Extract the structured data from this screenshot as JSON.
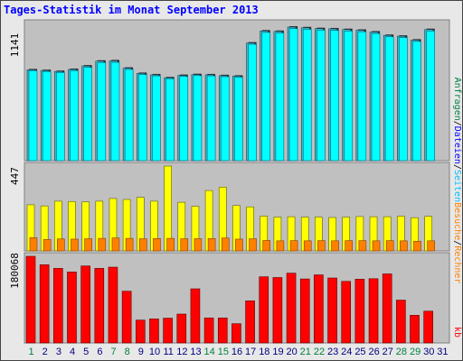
{
  "title": "Tages-Statistik im Monat September 2013",
  "colors": {
    "background": "#e8e8e8",
    "panel": "#c0c0c0",
    "anfragen": "#008040",
    "dateien": "#0000ff",
    "seiten": "#00c0ff",
    "besuche": "#ff8000",
    "rechner": "#ff8000",
    "kb": "#ff0000",
    "bar_requests": "#48bac0",
    "bar_files": "#00ffff",
    "bar_pages": "#00e0ff",
    "bar_visits": "#ffff00",
    "bar_hosts": "#ff8000",
    "bar_kb": "#ff0000",
    "weekend_label": "#008040",
    "weekday_label": "#000080"
  },
  "right_legend": {
    "anfragen": "Anfragen",
    "sep1": "/",
    "dateien": "Dateien",
    "sep2": "/",
    "seiten": "Seiten",
    "besuche": "Besuche",
    "sep3": "/",
    "rechner": "Rechner",
    "kb": "kb"
  },
  "chart_data": [
    {
      "type": "bar",
      "panel": "hits",
      "ymax_label": "1141",
      "ymax": 1141,
      "categories": [
        "1",
        "2",
        "3",
        "4",
        "5",
        "6",
        "7",
        "8",
        "9",
        "10",
        "11",
        "12",
        "13",
        "14",
        "15",
        "16",
        "17",
        "18",
        "19",
        "20",
        "21",
        "22",
        "23",
        "24",
        "25",
        "26",
        "27",
        "28",
        "29",
        "30"
      ],
      "series": [
        {
          "name": "Anfragen",
          "values": [
            776,
            770,
            762,
            779,
            809,
            850,
            853,
            790,
            745,
            733,
            708,
            728,
            735,
            733,
            726,
            722,
            1005,
            1108,
            1104,
            1141,
            1135,
            1128,
            1126,
            1120,
            1114,
            1099,
            1070,
            1063,
            1030,
            1120
          ]
        },
        {
          "name": "Dateien",
          "values": [
            769,
            761,
            753,
            769,
            797,
            838,
            840,
            779,
            735,
            724,
            700,
            719,
            726,
            724,
            717,
            713,
            994,
            1095,
            1091,
            1128,
            1122,
            1115,
            1113,
            1107,
            1101,
            1086,
            1058,
            1051,
            1018,
            1108
          ]
        }
      ]
    },
    {
      "type": "bar",
      "panel": "visits",
      "ymax_label": "447",
      "ymax": 447,
      "categories": [
        "1",
        "2",
        "3",
        "4",
        "5",
        "6",
        "7",
        "8",
        "9",
        "10",
        "11",
        "12",
        "13",
        "14",
        "15",
        "16",
        "17",
        "18",
        "19",
        "20",
        "21",
        "22",
        "23",
        "24",
        "25",
        "26",
        "27",
        "28",
        "29",
        "30"
      ],
      "series": [
        {
          "name": "Besuche",
          "values": [
            243,
            237,
            262,
            260,
            258,
            262,
            276,
            271,
            282,
            262,
            447,
            256,
            235,
            318,
            336,
            239,
            232,
            183,
            178,
            180,
            178,
            178,
            176,
            178,
            181,
            180,
            180,
            183,
            175,
            182
          ]
        },
        {
          "name": "Rechner",
          "values": [
            70,
            60,
            63,
            62,
            64,
            66,
            68,
            66,
            64,
            65,
            66,
            64,
            64,
            65,
            68,
            62,
            64,
            55,
            53,
            54,
            53,
            54,
            53,
            54,
            54,
            53,
            54,
            53,
            51,
            53
          ]
        }
      ]
    },
    {
      "type": "bar",
      "panel": "kb",
      "ymax_label": "180068",
      "ymax": 180068,
      "categories": [
        "1",
        "2",
        "3",
        "4",
        "5",
        "6",
        "7",
        "8",
        "9",
        "10",
        "11",
        "12",
        "13",
        "14",
        "15",
        "16",
        "17",
        "18",
        "19",
        "20",
        "21",
        "22",
        "23",
        "24",
        "25",
        "26",
        "27",
        "28",
        "29",
        "30"
      ],
      "series": [
        {
          "name": "kb",
          "values": [
            180068,
            162500,
            155000,
            147500,
            160000,
            155000,
            157500,
            107500,
            47500,
            50000,
            51500,
            60000,
            112500,
            52000,
            52000,
            40000,
            87500,
            137500,
            136000,
            145000,
            133000,
            141500,
            135000,
            128000,
            132500,
            133500,
            143500,
            89000,
            57500,
            66000
          ]
        }
      ]
    }
  ],
  "x_labels": [
    "1",
    "2",
    "3",
    "4",
    "5",
    "6",
    "7",
    "8",
    "9",
    "10",
    "11",
    "12",
    "13",
    "14",
    "15",
    "16",
    "17",
    "18",
    "19",
    "20",
    "21",
    "22",
    "23",
    "24",
    "25",
    "26",
    "27",
    "28",
    "29",
    "30",
    "31"
  ],
  "weekend_days": [
    1,
    7,
    8,
    14,
    15,
    21,
    22,
    28,
    29
  ]
}
